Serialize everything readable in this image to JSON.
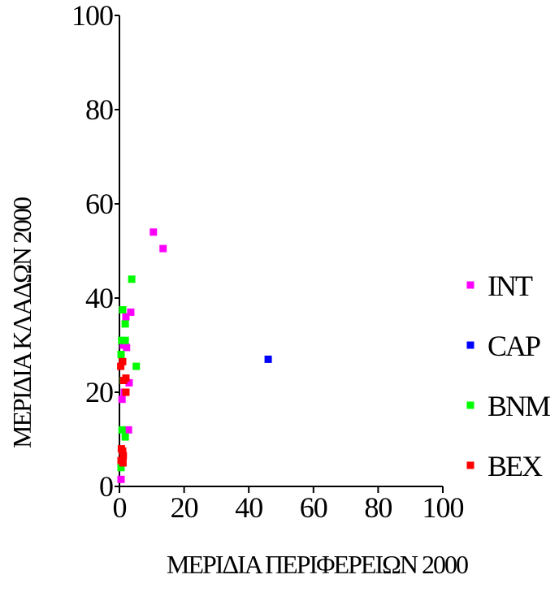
{
  "chart_data": {
    "type": "scatter",
    "title": "",
    "xlabel": "ΜΕΡΙΔΙΑ ΠΕΡΙΦΕΡΕΙΩΝ 2000",
    "ylabel": "ΜΕΡΙΔΙΑ ΚΛΑΔΩΝ 2000",
    "xlim": [
      0,
      100
    ],
    "ylim": [
      0,
      100
    ],
    "x_ticks": [
      "0",
      "20",
      "40",
      "60",
      "80",
      "100"
    ],
    "y_ticks": [
      "0",
      "20",
      "40",
      "60",
      "80",
      "100"
    ],
    "grid": false,
    "legend_position": "right",
    "series": [
      {
        "name": "INT",
        "color": "#ff00ff",
        "points": [
          [
            10.5,
            54
          ],
          [
            13.5,
            50.5
          ],
          [
            3.5,
            37
          ],
          [
            2,
            36
          ],
          [
            1.2,
            30
          ],
          [
            2.2,
            29.5
          ],
          [
            3,
            22
          ],
          [
            1.5,
            20
          ],
          [
            0.8,
            18.5
          ],
          [
            2.8,
            12
          ],
          [
            0.5,
            1.5
          ]
        ]
      },
      {
        "name": "CAP",
        "color": "#0000ff",
        "points": [
          [
            46,
            27
          ]
        ]
      },
      {
        "name": "BNM",
        "color": "#00ff00",
        "points": [
          [
            3.8,
            44
          ],
          [
            1,
            37.5
          ],
          [
            1.8,
            34.5
          ],
          [
            0.7,
            31
          ],
          [
            1.8,
            31
          ],
          [
            0.5,
            28
          ],
          [
            5.2,
            25.5
          ],
          [
            1.2,
            22.5
          ],
          [
            0.8,
            12
          ],
          [
            1.8,
            10.5
          ],
          [
            0.5,
            4
          ]
        ]
      },
      {
        "name": "BEX",
        "color": "#ff0000",
        "points": [
          [
            1,
            26.5
          ],
          [
            0.4,
            25.5
          ],
          [
            2,
            23
          ],
          [
            1.3,
            22.5
          ],
          [
            2,
            20
          ],
          [
            0.6,
            8
          ],
          [
            1,
            7.5
          ],
          [
            1.2,
            6.5
          ],
          [
            0.5,
            5.5
          ],
          [
            1.1,
            5
          ]
        ]
      }
    ]
  }
}
